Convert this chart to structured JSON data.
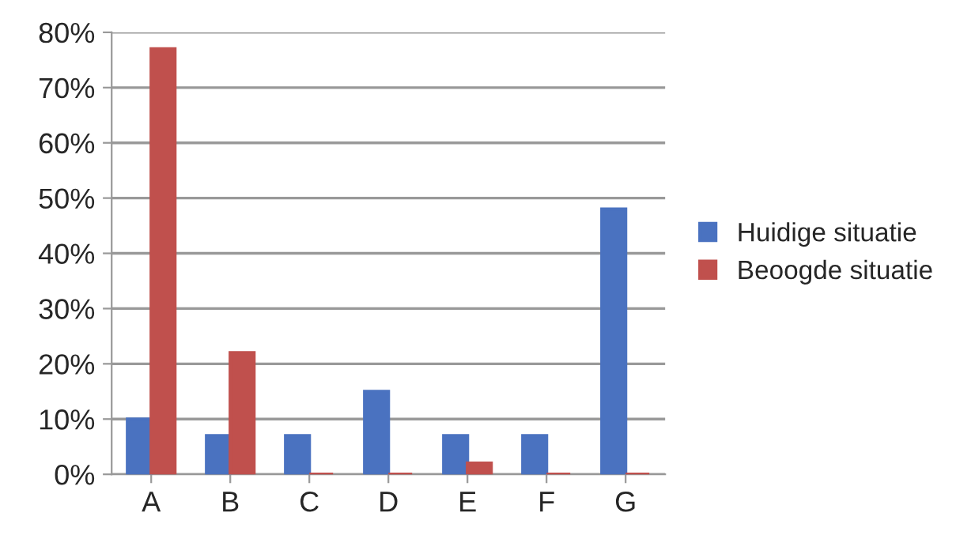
{
  "chart_data": {
    "type": "bar",
    "categories": [
      "A",
      "B",
      "C",
      "D",
      "E",
      "F",
      "G"
    ],
    "series": [
      {
        "name": "Huidige situatie",
        "color": "#4a72c0",
        "values": [
          10,
          7,
          7,
          15,
          7,
          7,
          48
        ]
      },
      {
        "name": "Beoogde situatie",
        "color": "#c0504d",
        "values": [
          77,
          22,
          0,
          0,
          2,
          0,
          0
        ]
      }
    ],
    "ylim": [
      0,
      80
    ],
    "yticks": [
      {
        "value": 0,
        "label": "0%"
      },
      {
        "value": 10,
        "label": "10%"
      },
      {
        "value": 20,
        "label": "20%"
      },
      {
        "value": 30,
        "label": "30%"
      },
      {
        "value": 40,
        "label": "40%"
      },
      {
        "value": 50,
        "label": "50%"
      },
      {
        "value": 60,
        "label": "60%"
      },
      {
        "value": 70,
        "label": "70%"
      },
      {
        "value": 80,
        "label": "80%"
      }
    ],
    "grid": "y",
    "legend": "right"
  }
}
